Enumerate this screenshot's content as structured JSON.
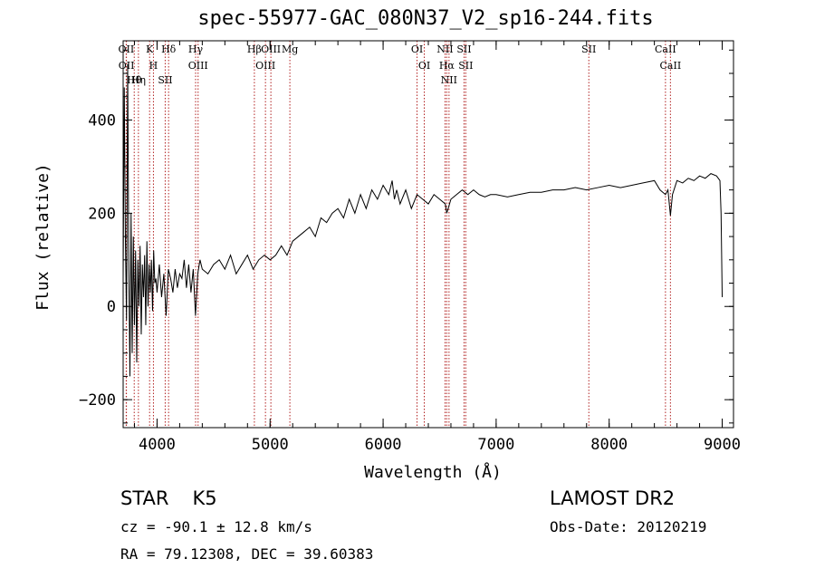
{
  "header": {
    "title": "spec-55977-GAC_080N37_V2_sp16-244.fits"
  },
  "footer": {
    "object_class": "STAR",
    "subclass": "K5",
    "survey": "LAMOST DR2",
    "cz_text": "cz = -90.1 ± 12.8 km/s",
    "obs_date_text": "Obs-Date: 20120219",
    "radec_text": "RA =  79.12308, DEC =  39.60383"
  },
  "chart_data": {
    "type": "line",
    "title": "spec-55977-GAC_080N37_V2_sp16-244.fits",
    "xlabel": "Wavelength (Å)",
    "ylabel": "Flux (relative)",
    "xlim": [
      3700,
      9100
    ],
    "ylim": [
      -260,
      570
    ],
    "x_ticks": [
      4000,
      5000,
      6000,
      7000,
      8000,
      9000
    ],
    "y_ticks": [
      -200,
      0,
      200,
      400
    ],
    "grid": false,
    "line_color": "#000000",
    "marker_color": "#b22222",
    "line_markers": [
      {
        "name": "OII",
        "wavelength": 3727
      },
      {
        "name": "OII",
        "wavelength": 3729
      },
      {
        "name": "Hθ",
        "wavelength": 3798
      },
      {
        "name": "Hη",
        "wavelength": 3835
      },
      {
        "name": "K",
        "wavelength": 3934
      },
      {
        "name": "H",
        "wavelength": 3968
      },
      {
        "name": "SII",
        "wavelength": 4072
      },
      {
        "name": "Hδ",
        "wavelength": 4102
      },
      {
        "name": "Hγ",
        "wavelength": 4341
      },
      {
        "name": "OIII",
        "wavelength": 4363
      },
      {
        "name": "Hβ",
        "wavelength": 4861
      },
      {
        "name": "OIII",
        "wavelength": 4959
      },
      {
        "name": "OIII",
        "wavelength": 5007
      },
      {
        "name": "Mg",
        "wavelength": 5175
      },
      {
        "name": "OI",
        "wavelength": 6300
      },
      {
        "name": "OI",
        "wavelength": 6364
      },
      {
        "name": "NII",
        "wavelength": 6548
      },
      {
        "name": "Hα",
        "wavelength": 6563
      },
      {
        "name": "NII",
        "wavelength": 6583
      },
      {
        "name": "SII",
        "wavelength": 6716
      },
      {
        "name": "SII",
        "wavelength": 6731
      },
      {
        "name": "SII",
        "wavelength": 7820
      },
      {
        "name": "CaII",
        "wavelength": 8498
      },
      {
        "name": "CaII",
        "wavelength": 8542
      }
    ],
    "series": [
      {
        "x": [
          3700,
          3710,
          3720,
          3730,
          3740,
          3750,
          3760,
          3770,
          3780,
          3790,
          3800,
          3810,
          3820,
          3830,
          3840,
          3850,
          3860,
          3870,
          3880,
          3890,
          3900,
          3910,
          3920,
          3930,
          3940,
          3950,
          3960,
          3970,
          3980,
          3990,
          4000,
          4020,
          4040,
          4060,
          4080,
          4100,
          4120,
          4140,
          4160,
          4180,
          4200,
          4220,
          4240,
          4260,
          4280,
          4300,
          4320,
          4340,
          4360,
          4380,
          4400,
          4450,
          4500,
          4550,
          4600,
          4650,
          4700,
          4750,
          4800,
          4850,
          4900,
          4950,
          5000,
          5050,
          5100,
          5150,
          5200,
          5250,
          5300,
          5350,
          5400,
          5450,
          5500,
          5550,
          5600,
          5650,
          5700,
          5750,
          5800,
          5850,
          5900,
          5950,
          6000,
          6050,
          6080,
          6100,
          6120,
          6150,
          6200,
          6250,
          6300,
          6350,
          6400,
          6450,
          6500,
          6550,
          6563,
          6600,
          6650,
          6700,
          6750,
          6800,
          6850,
          6900,
          6950,
          7000,
          7100,
          7200,
          7300,
          7400,
          7500,
          7600,
          7700,
          7800,
          7900,
          8000,
          8100,
          8200,
          8300,
          8400,
          8450,
          8498,
          8520,
          8542,
          8560,
          8600,
          8650,
          8700,
          8750,
          8800,
          8850,
          8900,
          8950,
          8980,
          8990,
          9000
        ],
        "y": [
          60,
          470,
          140,
          -30,
          520,
          80,
          -150,
          200,
          -100,
          150,
          -40,
          120,
          -120,
          100,
          0,
          130,
          -60,
          90,
          20,
          110,
          -40,
          140,
          0,
          90,
          30,
          100,
          -10,
          120,
          50,
          60,
          30,
          90,
          20,
          70,
          -20,
          80,
          60,
          30,
          80,
          40,
          70,
          60,
          100,
          40,
          90,
          30,
          80,
          -20,
          70,
          100,
          80,
          70,
          90,
          100,
          80,
          110,
          70,
          90,
          110,
          80,
          100,
          110,
          100,
          110,
          130,
          110,
          140,
          150,
          160,
          170,
          150,
          190,
          180,
          200,
          210,
          190,
          230,
          200,
          240,
          210,
          250,
          230,
          260,
          240,
          270,
          230,
          250,
          220,
          250,
          210,
          240,
          230,
          220,
          240,
          230,
          220,
          200,
          230,
          240,
          250,
          240,
          250,
          240,
          235,
          240,
          240,
          235,
          240,
          245,
          245,
          250,
          250,
          255,
          250,
          255,
          260,
          255,
          260,
          265,
          270,
          250,
          240,
          250,
          195,
          240,
          270,
          265,
          275,
          270,
          280,
          275,
          285,
          280,
          270,
          200,
          20
        ]
      }
    ]
  }
}
